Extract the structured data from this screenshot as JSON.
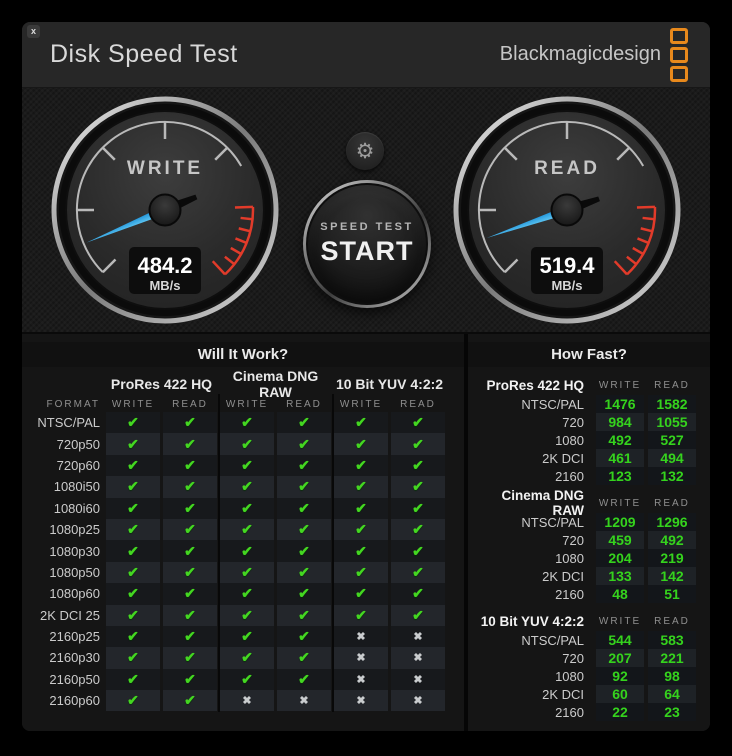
{
  "window": {
    "title": "Disk Speed Test",
    "brand": "Blackmagicdesign",
    "close_label": "x"
  },
  "gauges": {
    "write": {
      "label": "WRITE",
      "value": "484.2",
      "unit": "MB/s"
    },
    "read": {
      "label": "READ",
      "value": "519.4",
      "unit": "MB/s"
    }
  },
  "controls": {
    "settings_glyph": "⚙",
    "start_line1": "SPEED TEST",
    "start_line2": "START"
  },
  "colors": {
    "accent_orange": "#e8891c",
    "needle_blue": "#2aa3e8",
    "check_green": "#44d621",
    "value_green": "#35d31d",
    "red_zone": "#e23b2a"
  },
  "will_it_work": {
    "title": "Will It Work?",
    "format_header": "FORMAT",
    "groups": [
      "ProRes 422 HQ",
      "Cinema DNG RAW",
      "10 Bit YUV 4:2:2"
    ],
    "sub_headers": [
      "WRITE",
      "READ"
    ],
    "check_glyph": "✔",
    "cross_glyph": "✖",
    "rows": [
      {
        "format": "NTSC/PAL",
        "results": [
          true,
          true,
          true,
          true,
          true,
          true
        ]
      },
      {
        "format": "720p50",
        "results": [
          true,
          true,
          true,
          true,
          true,
          true
        ]
      },
      {
        "format": "720p60",
        "results": [
          true,
          true,
          true,
          true,
          true,
          true
        ]
      },
      {
        "format": "1080i50",
        "results": [
          true,
          true,
          true,
          true,
          true,
          true
        ]
      },
      {
        "format": "1080i60",
        "results": [
          true,
          true,
          true,
          true,
          true,
          true
        ]
      },
      {
        "format": "1080p25",
        "results": [
          true,
          true,
          true,
          true,
          true,
          true
        ]
      },
      {
        "format": "1080p30",
        "results": [
          true,
          true,
          true,
          true,
          true,
          true
        ]
      },
      {
        "format": "1080p50",
        "results": [
          true,
          true,
          true,
          true,
          true,
          true
        ]
      },
      {
        "format": "1080p60",
        "results": [
          true,
          true,
          true,
          true,
          true,
          true
        ]
      },
      {
        "format": "2K DCI 25",
        "results": [
          true,
          true,
          true,
          true,
          true,
          true
        ]
      },
      {
        "format": "2160p25",
        "results": [
          true,
          true,
          true,
          true,
          false,
          false
        ]
      },
      {
        "format": "2160p30",
        "results": [
          true,
          true,
          true,
          true,
          false,
          false
        ]
      },
      {
        "format": "2160p50",
        "results": [
          true,
          true,
          true,
          true,
          false,
          false
        ]
      },
      {
        "format": "2160p60",
        "results": [
          true,
          true,
          false,
          false,
          false,
          false
        ]
      }
    ]
  },
  "how_fast": {
    "title": "How Fast?",
    "sub_headers": [
      "WRITE",
      "READ"
    ],
    "groups": [
      {
        "name": "ProRes 422 HQ",
        "rows": [
          {
            "format": "NTSC/PAL",
            "write": 1476,
            "read": 1582
          },
          {
            "format": "720",
            "write": 984,
            "read": 1055
          },
          {
            "format": "1080",
            "write": 492,
            "read": 527
          },
          {
            "format": "2K DCI",
            "write": 461,
            "read": 494
          },
          {
            "format": "2160",
            "write": 123,
            "read": 132
          }
        ]
      },
      {
        "name": "Cinema DNG RAW",
        "rows": [
          {
            "format": "NTSC/PAL",
            "write": 1209,
            "read": 1296
          },
          {
            "format": "720",
            "write": 459,
            "read": 492
          },
          {
            "format": "1080",
            "write": 204,
            "read": 219
          },
          {
            "format": "2K DCI",
            "write": 133,
            "read": 142
          },
          {
            "format": "2160",
            "write": 48,
            "read": 51
          }
        ]
      },
      {
        "name": "10 Bit YUV 4:2:2",
        "rows": [
          {
            "format": "NTSC/PAL",
            "write": 544,
            "read": 583
          },
          {
            "format": "720",
            "write": 207,
            "read": 221
          },
          {
            "format": "1080",
            "write": 92,
            "read": 98
          },
          {
            "format": "2K DCI",
            "write": 60,
            "read": 64
          },
          {
            "format": "2160",
            "write": 22,
            "read": 23
          }
        ]
      }
    ]
  }
}
